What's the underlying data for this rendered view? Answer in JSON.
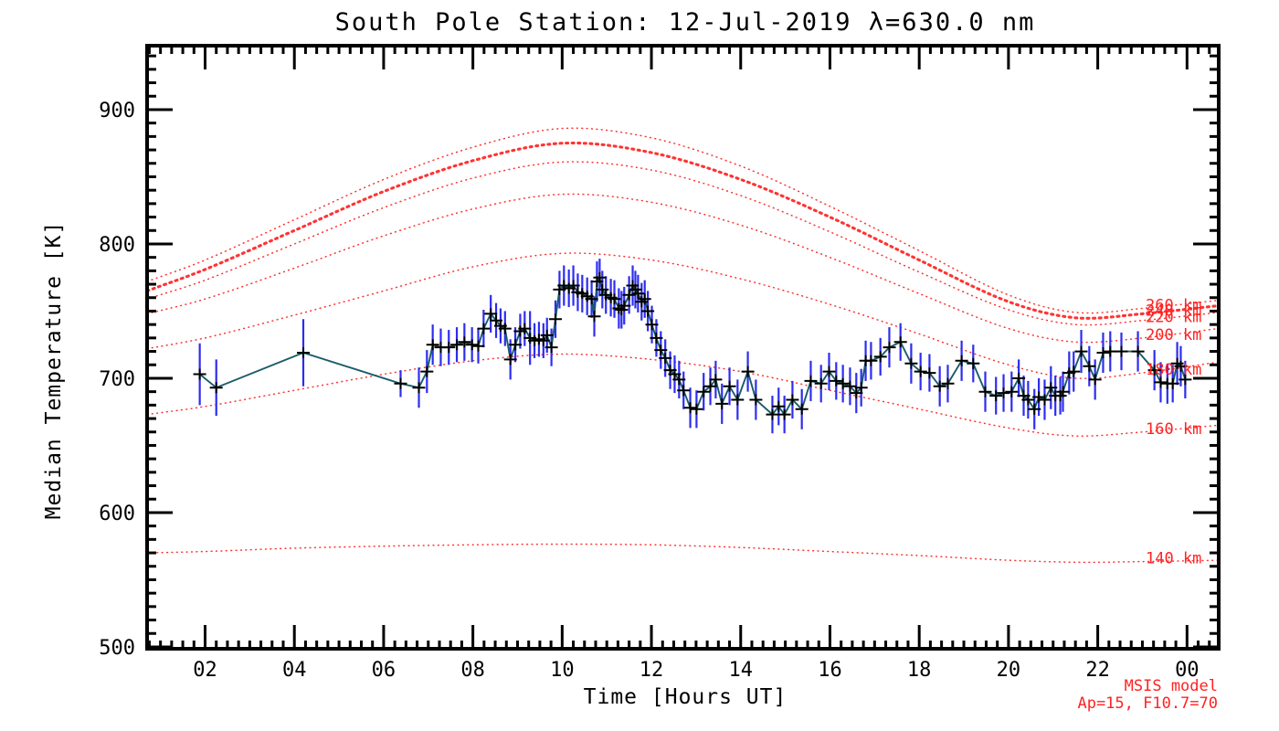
{
  "title": "South Pole Station: 12-Jul-2019 λ=630.0 nm",
  "colors": {
    "background": "#ffffff",
    "frame": "#000000",
    "data_line": "#1a5c68",
    "error_bar": "#2d2df0",
    "marker": "#000000",
    "model_curve": "#ff3333",
    "model_label": "#ff2222"
  },
  "chart_data": {
    "type": "line",
    "title": "South Pole Station: 12-Jul-2019 λ=630.0 nm",
    "xlabel": "Time [Hours UT]",
    "ylabel": "Median Temperature [K]",
    "xlim": [
      0.7,
      24.71
    ],
    "ylim": [
      498.6,
      947.6
    ],
    "grid": false,
    "legend_position": "none",
    "x_major_tick_hours": [
      2,
      4,
      6,
      8,
      10,
      12,
      14,
      16,
      18,
      20,
      22,
      24
    ],
    "x_tick_labels": [
      "02",
      "04",
      "06",
      "08",
      "10",
      "12",
      "14",
      "16",
      "18",
      "20",
      "22",
      "00"
    ],
    "x_minor_step": 0.25,
    "y_major_ticks": [
      500,
      600,
      700,
      800,
      900
    ],
    "y_minor_step": 10,
    "series": [
      {
        "name": "median-temperature-630nm",
        "marker": "plus",
        "points_format": [
          "hour_ut",
          "temperature_K",
          "error_K"
        ],
        "points": [
          [
            1.88,
            703,
            23
          ],
          [
            2.25,
            693,
            21
          ],
          [
            4.2,
            719,
            25
          ],
          [
            6.38,
            696,
            10
          ],
          [
            6.79,
            693,
            15
          ],
          [
            6.97,
            705,
            16
          ],
          [
            7.1,
            725,
            15
          ],
          [
            7.28,
            723,
            14
          ],
          [
            7.46,
            723,
            13
          ],
          [
            7.64,
            725,
            13
          ],
          [
            7.81,
            727,
            14
          ],
          [
            7.98,
            725,
            13
          ],
          [
            8.12,
            724,
            13
          ],
          [
            8.24,
            737,
            14
          ],
          [
            8.4,
            748,
            14
          ],
          [
            8.52,
            743,
            13
          ],
          [
            8.62,
            739,
            13
          ],
          [
            8.72,
            737,
            13
          ],
          [
            8.84,
            714,
            15
          ],
          [
            8.95,
            725,
            13
          ],
          [
            9.06,
            735,
            13
          ],
          [
            9.16,
            737,
            13
          ],
          [
            9.28,
            730,
            20
          ],
          [
            9.38,
            728,
            13
          ],
          [
            9.48,
            729,
            13
          ],
          [
            9.58,
            728,
            13
          ],
          [
            9.66,
            732,
            13
          ],
          [
            9.76,
            723,
            14
          ],
          [
            9.85,
            744,
            14
          ],
          [
            9.94,
            766,
            14
          ],
          [
            10.04,
            769,
            15
          ],
          [
            10.15,
            767,
            14
          ],
          [
            10.25,
            769,
            15
          ],
          [
            10.35,
            764,
            14
          ],
          [
            10.45,
            763,
            14
          ],
          [
            10.56,
            761,
            14
          ],
          [
            10.66,
            759,
            14
          ],
          [
            10.72,
            746,
            15
          ],
          [
            10.78,
            772,
            15
          ],
          [
            10.84,
            775,
            14
          ],
          [
            10.9,
            766,
            14
          ],
          [
            10.98,
            762,
            14
          ],
          [
            11.09,
            760,
            14
          ],
          [
            11.17,
            759,
            14
          ],
          [
            11.27,
            752,
            15
          ],
          [
            11.33,
            751,
            14
          ],
          [
            11.39,
            754,
            14
          ],
          [
            11.5,
            762,
            14
          ],
          [
            11.58,
            769,
            15
          ],
          [
            11.64,
            766,
            14
          ],
          [
            11.7,
            763,
            14
          ],
          [
            11.78,
            757,
            14
          ],
          [
            11.85,
            759,
            14
          ],
          [
            11.92,
            750,
            15
          ],
          [
            12.01,
            740,
            14
          ],
          [
            12.11,
            730,
            14
          ],
          [
            12.21,
            721,
            14
          ],
          [
            12.31,
            715,
            14
          ],
          [
            12.42,
            706,
            14
          ],
          [
            12.52,
            703,
            14
          ],
          [
            12.62,
            699,
            14
          ],
          [
            12.72,
            691,
            14
          ],
          [
            12.87,
            678,
            15
          ],
          [
            13.01,
            677,
            14
          ],
          [
            13.17,
            690,
            14
          ],
          [
            13.32,
            694,
            14
          ],
          [
            13.44,
            699,
            14
          ],
          [
            13.58,
            681,
            15
          ],
          [
            13.75,
            694,
            14
          ],
          [
            13.93,
            684,
            15
          ],
          [
            14.16,
            705,
            15
          ],
          [
            14.34,
            684,
            15
          ],
          [
            14.71,
            673,
            14
          ],
          [
            14.85,
            679,
            14
          ],
          [
            14.98,
            673,
            14
          ],
          [
            15.16,
            684,
            14
          ],
          [
            15.37,
            677,
            15
          ],
          [
            15.57,
            698,
            15
          ],
          [
            15.8,
            696,
            14
          ],
          [
            15.98,
            705,
            14
          ],
          [
            16.14,
            698,
            14
          ],
          [
            16.29,
            696,
            14
          ],
          [
            16.45,
            694,
            14
          ],
          [
            16.59,
            689,
            15
          ],
          [
            16.7,
            693,
            14
          ],
          [
            16.8,
            713,
            15
          ],
          [
            16.92,
            713,
            14
          ],
          [
            17.13,
            716,
            14
          ],
          [
            17.33,
            723,
            15
          ],
          [
            17.58,
            727,
            14
          ],
          [
            17.82,
            711,
            15
          ],
          [
            18.03,
            705,
            14
          ],
          [
            18.23,
            704,
            14
          ],
          [
            18.46,
            694,
            15
          ],
          [
            18.64,
            696,
            14
          ],
          [
            18.95,
            713,
            15
          ],
          [
            19.21,
            711,
            14
          ],
          [
            19.48,
            690,
            15
          ],
          [
            19.72,
            687,
            14
          ],
          [
            19.89,
            689,
            14
          ],
          [
            20.07,
            690,
            15
          ],
          [
            20.23,
            700,
            14
          ],
          [
            20.34,
            687,
            15
          ],
          [
            20.44,
            684,
            14
          ],
          [
            20.58,
            677,
            15
          ],
          [
            20.68,
            686,
            14
          ],
          [
            20.81,
            684,
            15
          ],
          [
            20.95,
            693,
            16
          ],
          [
            21.05,
            687,
            15
          ],
          [
            21.16,
            687,
            14
          ],
          [
            21.22,
            690,
            15
          ],
          [
            21.36,
            704,
            16
          ],
          [
            21.46,
            705,
            15
          ],
          [
            21.63,
            720,
            16
          ],
          [
            21.81,
            709,
            15
          ],
          [
            21.94,
            699,
            15
          ],
          [
            22.12,
            719,
            15
          ],
          [
            22.28,
            720,
            15
          ],
          [
            22.53,
            720,
            14
          ],
          [
            22.9,
            720,
            15
          ],
          [
            23.27,
            706,
            15
          ],
          [
            23.41,
            697,
            15
          ],
          [
            23.56,
            696,
            15
          ],
          [
            23.68,
            696,
            14
          ],
          [
            23.78,
            711,
            16
          ],
          [
            23.86,
            709,
            15
          ],
          [
            23.96,
            699,
            14
          ]
        ]
      }
    ],
    "model": {
      "annotation_line1": "MSIS model",
      "annotation_line2": "Ap=15, F10.7=70",
      "sample_hours": [
        0.7,
        2,
        4,
        6,
        8,
        10,
        12,
        14,
        16,
        18,
        20,
        21.5,
        23,
        24.7
      ],
      "curves": [
        {
          "label": "260 km",
          "altitude_km": 260,
          "thick": false,
          "temps": [
            772,
            788,
            818,
            848,
            872,
            886,
            879,
            858,
            828,
            795,
            762,
            749,
            752,
            758
          ]
        },
        {
          "label": "240 km",
          "altitude_km": 240,
          "thick": true,
          "temps": [
            765,
            781,
            810,
            839,
            862,
            875,
            868,
            848,
            820,
            788,
            757,
            745,
            748,
            754
          ]
        },
        {
          "label": "220 km",
          "altitude_km": 220,
          "thick": false,
          "temps": [
            759,
            773,
            800,
            827,
            849,
            861,
            855,
            836,
            809,
            779,
            751,
            740,
            743,
            749
          ]
        },
        {
          "label": "200 km",
          "altitude_km": 200,
          "thick": false,
          "temps": [
            748,
            759,
            782,
            806,
            826,
            837,
            831,
            814,
            790,
            763,
            737,
            727,
            730,
            737
          ]
        },
        {
          "label": "180 km",
          "altitude_km": 180,
          "thick": false,
          "temps": [
            722,
            730,
            747,
            765,
            783,
            793,
            788,
            774,
            755,
            733,
            710,
            700,
            704,
            712
          ]
        },
        {
          "label": "160 km",
          "altitude_km": 160,
          "thick": false,
          "temps": [
            673,
            679,
            691,
            703,
            713,
            718,
            714,
            705,
            691,
            677,
            663,
            657,
            660,
            665
          ]
        },
        {
          "label": "140 km",
          "altitude_km": 140,
          "thick": false,
          "temps": [
            570,
            571,
            573.5,
            575,
            576,
            576.5,
            576,
            574,
            571,
            568,
            564.5,
            563,
            563.5,
            564.5
          ]
        }
      ]
    }
  }
}
